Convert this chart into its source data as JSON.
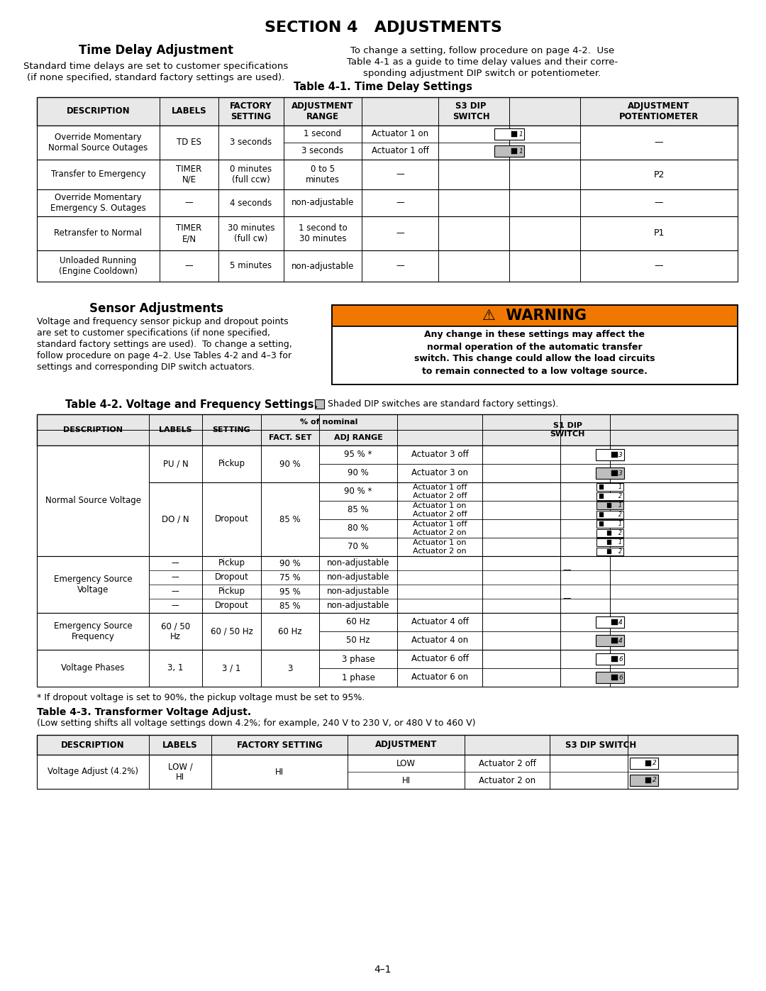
{
  "title": "SECTION 4   ADJUSTMENTS",
  "bg_color": "#ffffff",
  "time_delay_title": "Time Delay Adjustment",
  "time_delay_left_text1": "Standard time delays are set to customer specifications",
  "time_delay_left_text2": "(if none specified, standard factory settings are used).",
  "time_delay_right_text": "To change a setting, follow procedure on page 4-2.  Use\nTable 4-1 as a guide to time delay values and their corre-\nsponding adjustment DIP switch or potentiometer.",
  "table1_title": "Table 4-1. Time Delay Settings",
  "sensor_title": "Sensor Adjustments",
  "sensor_left_text": "Voltage and frequency sensor pickup and dropout points\nare set to customer specifications (if none specified,\nstandard factory settings are used).  To change a setting,\nfollow procedure on page 4–2. Use Tables 4-2 and 4–3 for\nsettings and corresponding DIP switch actuators.",
  "warning_title": "⚠  WARNING",
  "warning_text": "Any change in these settings may affect the\nnormal operation of the automatic transfer\nswitch. This change could allow the load circuits\nto remain connected to a low voltage source.",
  "table2_title": "Table 4-2. Voltage and Frequency Settings.",
  "table3_title": "Table 4-3. Transformer Voltage Adjust.",
  "table3_subtitle": "(Low setting shifts all voltage settings down 4.2%; for example, 240 V to 230 V, or 480 V to 460 V)",
  "page_number": "4–1",
  "orange_color": "#F07800",
  "shaded_bg": "#BEBEBE",
  "light_gray": "#E8E8E8"
}
